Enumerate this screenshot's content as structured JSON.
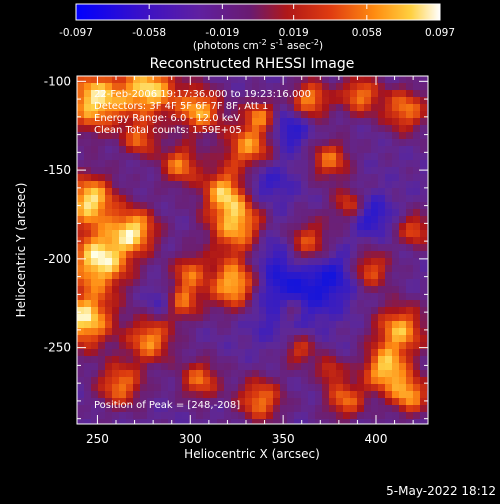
{
  "colorbar": {
    "ticks": [
      "-0.097",
      "-0.058",
      "-0.019",
      "0.019",
      "0.058",
      "0.097"
    ],
    "tick_values": [
      -0.097,
      -0.058,
      -0.019,
      0.019,
      0.058,
      0.097
    ],
    "range": [
      -0.097,
      0.097
    ],
    "units_text": "(photons cm",
    "units_sup1": "-2",
    "units_mid": " s",
    "units_sup2": "-1",
    "units_end": " asec",
    "units_sup3": "-2",
    "units_close": ")"
  },
  "chart_data": {
    "type": "heatmap",
    "title": "Reconstructed RHESSI Image",
    "xlabel": "Heliocentric X (arcsec)",
    "ylabel": "Heliocentric Y (arcsec)",
    "xlim": [
      239,
      428
    ],
    "ylim": [
      -293,
      -97
    ],
    "x_ticks": [
      250,
      300,
      350,
      400
    ],
    "y_ticks": [
      -100,
      -150,
      -200,
      -250
    ],
    "colormap": "rainbow/fire (blue-purple-red-orange-yellow-white)",
    "info_lines": [
      "22-Feb-2006 19:17:36.000 to 19:23:16.000",
      "Detectors: 3F 4F 5F 6F 7F 8F, Att 1",
      "Energy Range: 6.0 - 12.0 keV",
      "Clean     Total counts: 1.59E+05"
    ],
    "peak_annotation": "Position of Peak = [248,-208]",
    "peak_position": [
      248,
      -208
    ]
  },
  "footer": {
    "timestamp": "5-May-2022 18:12"
  }
}
